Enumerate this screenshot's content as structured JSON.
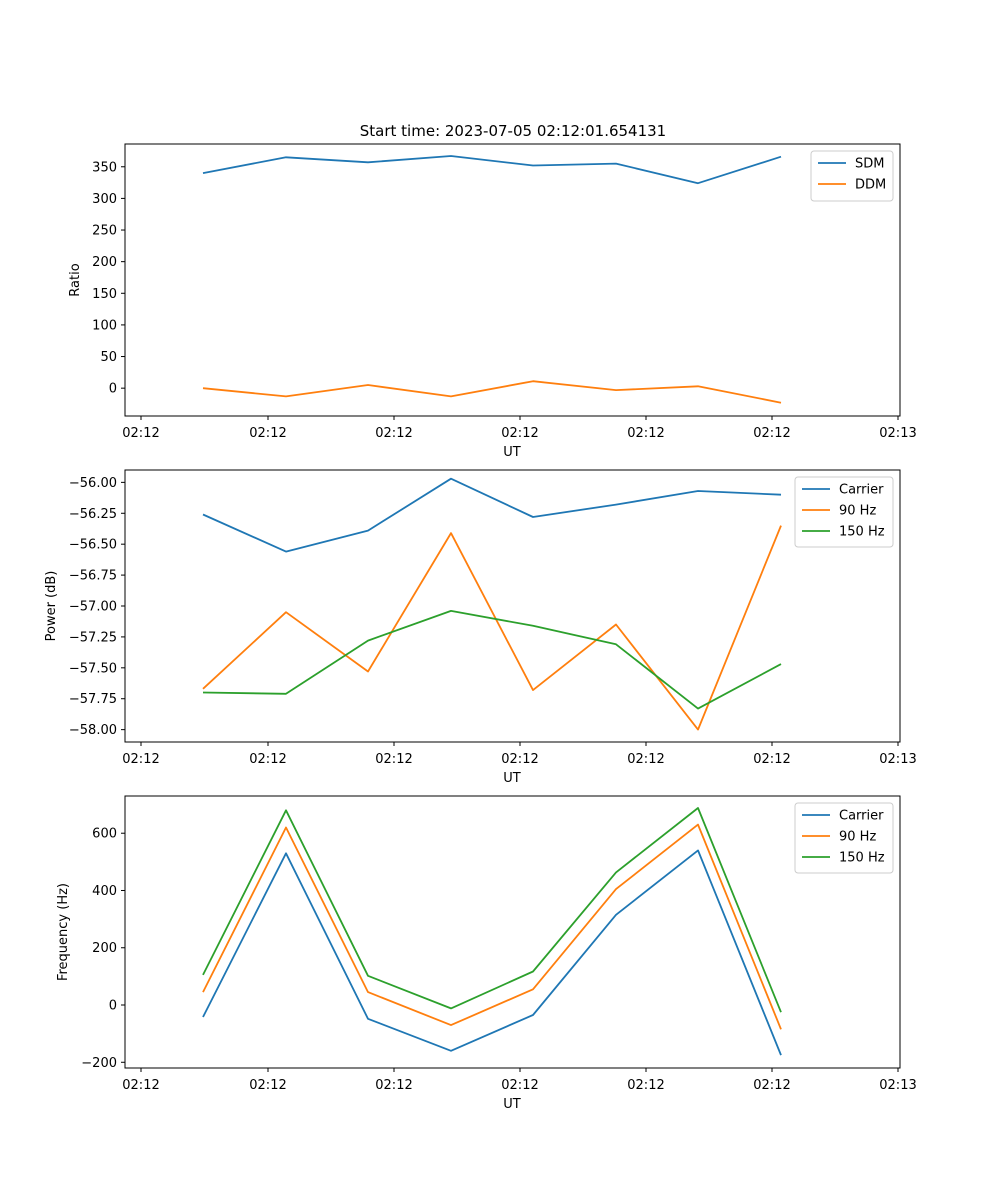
{
  "figure": {
    "title": "Start time: 2023-07-05 02:12:01.654131"
  },
  "chart_data": [
    {
      "type": "line",
      "title": "Start time: 2023-07-05 02:12:01.654131",
      "xlabel": "UT",
      "ylabel": "Ratio",
      "x": [
        0,
        1,
        2,
        3,
        4,
        5,
        6,
        7
      ],
      "x_tick_labels": [
        "02:12",
        "02:12",
        "02:12",
        "02:12",
        "02:12",
        "02:12",
        "02:13"
      ],
      "y_ticks": [
        0,
        50,
        100,
        150,
        200,
        250,
        300,
        350
      ],
      "y_tick_labels": [
        "0",
        "50",
        "100",
        "150",
        "200",
        "250",
        "300",
        "350"
      ],
      "ylim": [
        -44,
        386
      ],
      "legend_loc": "upper right",
      "series": [
        {
          "name": "SDM",
          "color": "#1f77b4",
          "values": [
            340,
            365,
            357,
            367,
            352,
            355,
            324,
            366
          ]
        },
        {
          "name": "DDM",
          "color": "#ff7f0e",
          "values": [
            0,
            -13,
            5,
            -13,
            11,
            -3,
            3,
            -23
          ]
        }
      ]
    },
    {
      "type": "line",
      "title": "",
      "xlabel": "UT",
      "ylabel": "Power (dB)",
      "x": [
        0,
        1,
        2,
        3,
        4,
        5,
        6,
        7
      ],
      "x_tick_labels": [
        "02:12",
        "02:12",
        "02:12",
        "02:12",
        "02:12",
        "02:12",
        "02:13"
      ],
      "y_ticks": [
        -58.0,
        -57.75,
        -57.5,
        -57.25,
        -57.0,
        -56.75,
        -56.5,
        -56.25,
        -56.0
      ],
      "y_tick_labels": [
        "−58.00",
        "−57.75",
        "−57.50",
        "−57.25",
        "−57.00",
        "−56.75",
        "−56.50",
        "−56.25",
        "−56.00"
      ],
      "ylim": [
        -58.1,
        -55.9
      ],
      "legend_loc": "upper right",
      "series": [
        {
          "name": "Carrier",
          "color": "#1f77b4",
          "values": [
            -56.26,
            -56.56,
            -56.39,
            -55.97,
            -56.28,
            -56.18,
            -56.07,
            -56.1
          ]
        },
        {
          "name": "90 Hz",
          "color": "#ff7f0e",
          "values": [
            -57.67,
            -57.05,
            -57.53,
            -56.41,
            -57.68,
            -57.15,
            -58.0,
            -56.35
          ]
        },
        {
          "name": "150 Hz",
          "color": "#2ca02c",
          "values": [
            -57.7,
            -57.71,
            -57.28,
            -57.04,
            -57.16,
            -57.31,
            -57.83,
            -57.47
          ]
        }
      ]
    },
    {
      "type": "line",
      "title": "",
      "xlabel": "UT",
      "ylabel": "Frequency (Hz)",
      "x": [
        0,
        1,
        2,
        3,
        4,
        5,
        6,
        7
      ],
      "x_tick_labels": [
        "02:12",
        "02:12",
        "02:12",
        "02:12",
        "02:12",
        "02:12",
        "02:13"
      ],
      "y_ticks": [
        -200,
        0,
        200,
        400,
        600
      ],
      "y_tick_labels": [
        "−200",
        "0",
        "200",
        "400",
        "600"
      ],
      "ylim": [
        -220,
        730
      ],
      "legend_loc": "upper right",
      "series": [
        {
          "name": "Carrier",
          "color": "#1f77b4",
          "values": [
            -42,
            530,
            -48,
            -160,
            -35,
            315,
            540,
            -175
          ]
        },
        {
          "name": "90 Hz",
          "color": "#ff7f0e",
          "values": [
            45,
            620,
            45,
            -70,
            55,
            405,
            630,
            -85
          ]
        },
        {
          "name": "150 Hz",
          "color": "#2ca02c",
          "values": [
            105,
            680,
            102,
            -12,
            117,
            463,
            688,
            -25
          ]
        }
      ]
    }
  ]
}
